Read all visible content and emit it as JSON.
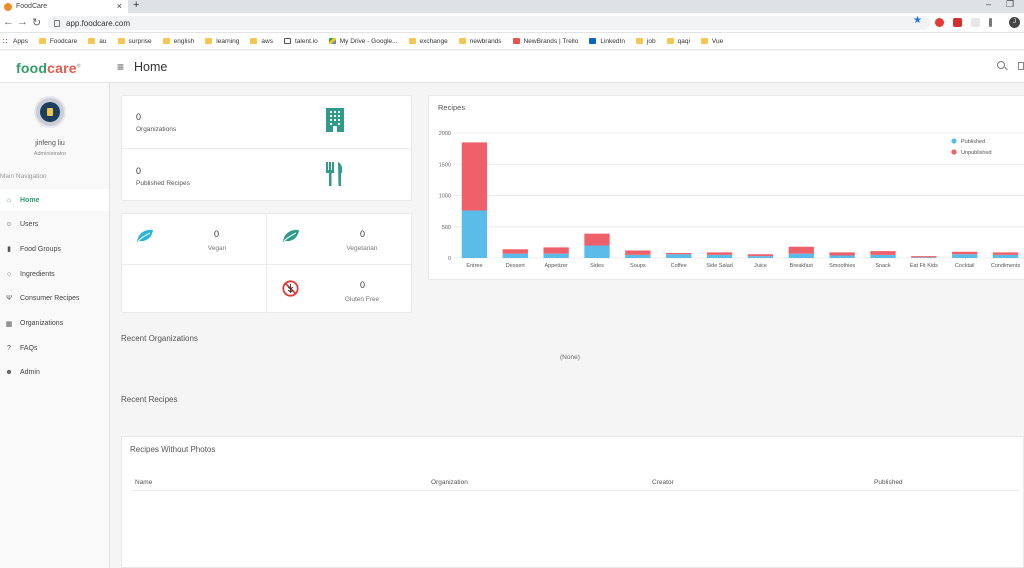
{
  "browser": {
    "tab_title": "FoodCare",
    "url": "app.foodcare.com",
    "profile_initial": "J",
    "bookmarks": [
      "Apps",
      "Foodcare",
      "au",
      "surprise",
      "english",
      "learning",
      "aws",
      "talent.io",
      "My Drive - Google...",
      "exchange",
      "newbrands",
      "NewBrands | Trello",
      "LinkedIn",
      "job",
      "qaqi",
      "Vue"
    ],
    "bookmark_icons": [
      "apps-icon",
      "folder-icon",
      "folder-icon",
      "folder-icon",
      "folder-icon",
      "folder-icon",
      "folder-icon",
      "talent-icon",
      "drive-icon",
      "folder-icon",
      "folder-icon",
      "trello-icon",
      "linkedin-icon",
      "folder-icon",
      "folder-icon",
      "folder-icon"
    ]
  },
  "header": {
    "logo_part1": "food",
    "logo_part2": "care",
    "logo_mark": "®",
    "page_title": "Home"
  },
  "user": {
    "name": "jinfeng liu",
    "role": "Administrator"
  },
  "sidebar": {
    "heading": "Main Navigation",
    "items": [
      {
        "label": "Home",
        "icon": "home-icon",
        "active": true
      },
      {
        "label": "Users",
        "icon": "users-icon"
      },
      {
        "label": "Food Groups",
        "icon": "bookmark-icon"
      },
      {
        "label": "Ingredients",
        "icon": "comment-icon"
      },
      {
        "label": "Consumer Recipes",
        "icon": "utensils-icon"
      },
      {
        "label": "Organizations",
        "icon": "building-icon"
      },
      {
        "label": "FAQs",
        "icon": "question-icon"
      },
      {
        "label": "Admin",
        "icon": "admin-users-icon"
      }
    ]
  },
  "stats": {
    "organizations": {
      "value": "0",
      "label": "Organizations"
    },
    "published_recipes": {
      "value": "0",
      "label": "Published Recipes"
    },
    "vegan": {
      "value": "0",
      "label": "Vegan"
    },
    "vegetarian": {
      "value": "0",
      "label": "Vegetarian"
    },
    "gluten_free": {
      "value": "0",
      "label": "Gluten Free"
    }
  },
  "colors": {
    "brand_green": "#2e9e6b",
    "brand_red": "#e55a4a",
    "icon_teal": "#2f9b8a",
    "leaf_blue": "#2bb3d9",
    "published": "#5bbcea",
    "unpublished": "#f0606a"
  },
  "chart_data": {
    "type": "bar",
    "stacked": true,
    "title": "Recipes",
    "categories": [
      "Entree",
      "Dessert",
      "Appetizer",
      "Sides",
      "Soups",
      "Coffee",
      "Side Salad",
      "Juice",
      "Breakfast",
      "Smoothies",
      "Snack",
      "Eat Fit Kids",
      "Cocktail",
      "Condiments"
    ],
    "series": [
      {
        "name": "Published",
        "values": [
          760,
          70,
          70,
          200,
          50,
          60,
          50,
          30,
          70,
          40,
          50,
          10,
          60,
          50
        ]
      },
      {
        "name": "Unpublished",
        "values": [
          1090,
          70,
          100,
          190,
          70,
          20,
          40,
          30,
          110,
          50,
          60,
          20,
          40,
          40
        ]
      }
    ],
    "yticks": [
      0,
      500,
      1000,
      1500,
      2000
    ],
    "ylim": [
      0,
      2000
    ],
    "legend": "top-right",
    "grid": true
  },
  "sections": {
    "recent_orgs_title": "Recent Organizations",
    "recent_orgs_empty": "(None)",
    "recent_recipes_title": "Recent Recipes",
    "no_photo_title": "Recipes Without Photos",
    "columns": [
      "Name",
      "Organization",
      "Creator",
      "Published"
    ]
  }
}
